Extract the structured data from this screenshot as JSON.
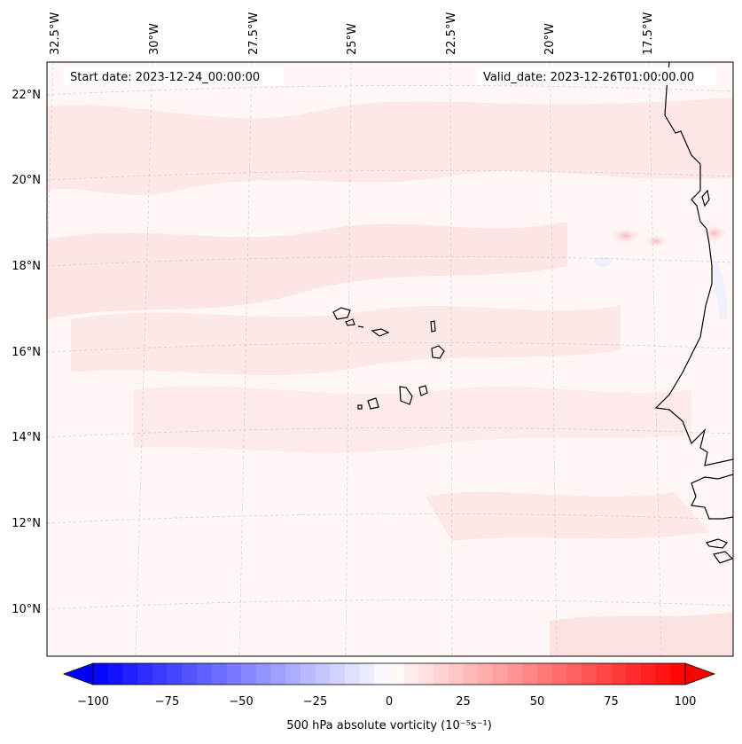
{
  "header": {
    "start_date": "Start date: 2023-12-24_00:00:00",
    "valid_date": "Valid_date: 2023-12-26T01:00:00.00"
  },
  "grid": {
    "lon_labels": [
      "32.5°W",
      "30°W",
      "27.5°W",
      "25°W",
      "22.5°W",
      "20°W",
      "17.5°W"
    ],
    "lat_labels": [
      "22°N",
      "20°N",
      "18°N",
      "16°N",
      "14°N",
      "12°N",
      "10°N"
    ]
  },
  "colorbar": {
    "label": "500 hPa absolute vorticity (10⁻⁵s⁻¹)",
    "ticks": [
      "−100",
      "−75",
      "−50",
      "−25",
      "0",
      "25",
      "50",
      "75",
      "100"
    ],
    "range": [
      -100,
      100
    ],
    "step": 5,
    "colormap": "bwr",
    "color_min": "#0000ff",
    "color_mid": "#ffffff",
    "color_max": "#ff0000"
  },
  "map_features": [
    "coastline-africa",
    "cape-verde-islands",
    "gridlines"
  ]
}
